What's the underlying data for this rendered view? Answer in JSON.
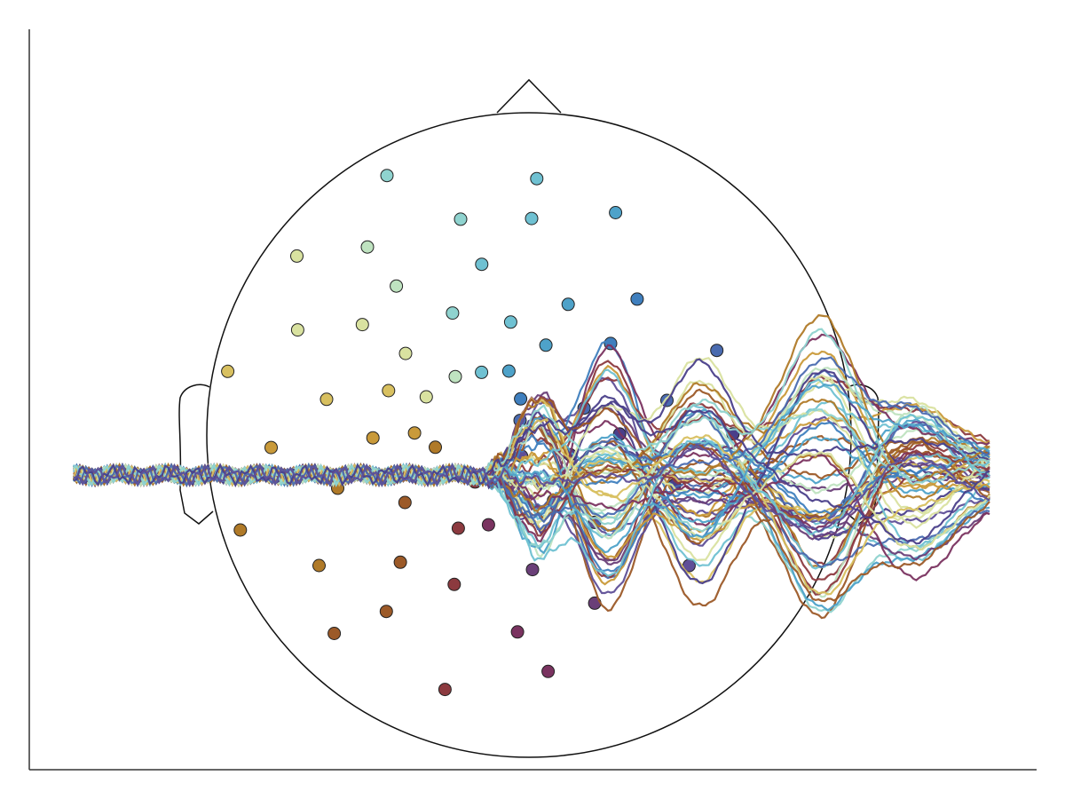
{
  "chart_data": {
    "type": "line",
    "title": "",
    "xlabel": "",
    "ylabel": "",
    "grid": false,
    "legend": "none",
    "x_range": [
      -100,
      500
    ],
    "y_range": [
      -10,
      10
    ],
    "stimulus_onset": 170,
    "channel_count": 60,
    "palette": [
      "#4a3f8a",
      "#5f4f97",
      "#6a3f78",
      "#7a3360",
      "#8c3a3f",
      "#9c5a28",
      "#b07a28",
      "#c99a3a",
      "#d8c060",
      "#d9e2a0",
      "#bfe3c0",
      "#8fd3cf",
      "#6fc1d2",
      "#4ea2c9",
      "#3f7fbe",
      "#4a6bb0"
    ],
    "colors": {
      "axis": "#333333",
      "head_outline": "#111111"
    },
    "topomap": {
      "shape": "head outline with nose and ears",
      "electrodes_count": 60
    },
    "series_shape": {
      "baseline_noise": 0.5,
      "components": [
        {
          "latency": 205,
          "amplitude": 4.0
        },
        {
          "latency": 250,
          "amplitude": 6.0
        },
        {
          "latency": 310,
          "amplitude": 5.0
        },
        {
          "latency": 390,
          "amplitude": 6.5
        },
        {
          "latency": 450,
          "amplitude": 4.0
        }
      ]
    }
  }
}
